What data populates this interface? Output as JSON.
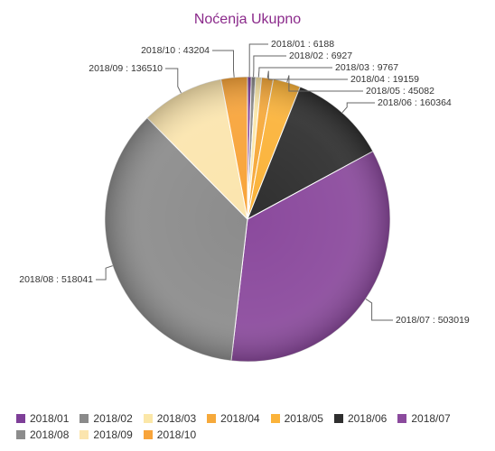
{
  "chart_data": {
    "type": "pie",
    "title": "Noćenja Ukupno",
    "title_color": "#8b2a8b",
    "categories": [
      "2018/01",
      "2018/02",
      "2018/03",
      "2018/04",
      "2018/05",
      "2018/06",
      "2018/07",
      "2018/08",
      "2018/09",
      "2018/10"
    ],
    "values": [
      6188,
      6927,
      9767,
      19159,
      45082,
      160364,
      503019,
      518041,
      136510,
      43204
    ],
    "colors": [
      "#7e3f98",
      "#8a8a8a",
      "#fbe7a8",
      "#f6a93b",
      "#fbb33a",
      "#2f2f2f",
      "#8b4a9d",
      "#8c8c8c",
      "#fbe5ae",
      "#f8a43a"
    ],
    "labels": [
      "2018/01 : 6188",
      "2018/02 : 6927",
      "2018/03 : 9767",
      "2018/04 : 19159",
      "2018/05 : 45082",
      "2018/06 : 160364",
      "2018/07 : 503019",
      "2018/08 : 518041",
      "2018/09 : 136510",
      "2018/10 : 43204"
    ],
    "legend": {
      "position": "bottom",
      "items": [
        "2018/01",
        "2018/02",
        "2018/03",
        "2018/04",
        "2018/05",
        "2018/06",
        "2018/07",
        "2018/08",
        "2018/09",
        "2018/10"
      ]
    }
  }
}
